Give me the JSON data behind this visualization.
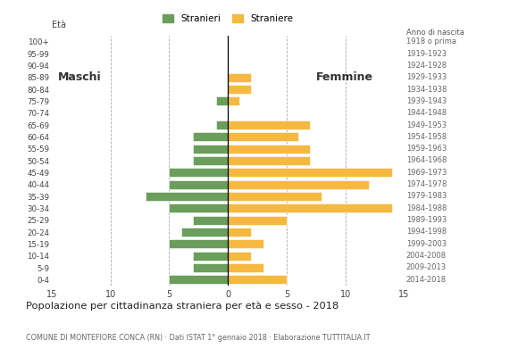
{
  "age_groups": [
    "0-4",
    "5-9",
    "10-14",
    "15-19",
    "20-24",
    "25-29",
    "30-34",
    "35-39",
    "40-44",
    "45-49",
    "50-54",
    "55-59",
    "60-64",
    "65-69",
    "70-74",
    "75-79",
    "80-84",
    "85-89",
    "90-94",
    "95-99",
    "100+"
  ],
  "birth_years": [
    "2014-2018",
    "2009-2013",
    "2004-2008",
    "1999-2003",
    "1994-1998",
    "1989-1993",
    "1984-1988",
    "1979-1983",
    "1974-1978",
    "1969-1973",
    "1964-1968",
    "1959-1963",
    "1954-1958",
    "1949-1953",
    "1944-1948",
    "1939-1943",
    "1934-1938",
    "1929-1933",
    "1924-1928",
    "1919-1923",
    "1918 o prima"
  ],
  "males": [
    5,
    3,
    3,
    5,
    4,
    3,
    5,
    7,
    5,
    5,
    3,
    3,
    3,
    1,
    0,
    1,
    0,
    0,
    0,
    0,
    0
  ],
  "females": [
    5,
    3,
    2,
    3,
    2,
    5,
    14,
    8,
    12,
    14,
    7,
    7,
    6,
    7,
    0,
    1,
    2,
    2,
    0,
    0,
    0
  ],
  "male_color": "#6a9e5a",
  "female_color": "#f5b942",
  "background_color": "#ffffff",
  "grid_color": "#aaaaaa",
  "title": "Popolazione per cittadinanza straniera per età e sesso - 2018",
  "subtitle": "COMUNE DI MONTEFIORE CONCA (RN) · Dati ISTAT 1° gennaio 2018 · Elaborazione TUTTITALIA.IT",
  "legend_male": "Stranieri",
  "legend_female": "Straniere",
  "label_eta": "Età",
  "label_maschi": "Maschi",
  "label_femmine": "Femmine",
  "label_anno": "Anno di nascita",
  "xlim": 15
}
